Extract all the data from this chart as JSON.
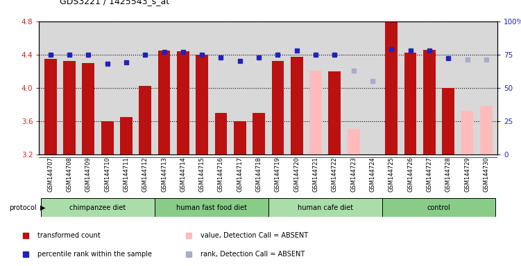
{
  "title": "GDS3221 / 1425543_s_at",
  "samples": [
    "GSM144707",
    "GSM144708",
    "GSM144709",
    "GSM144710",
    "GSM144711",
    "GSM144712",
    "GSM144713",
    "GSM144714",
    "GSM144715",
    "GSM144716",
    "GSM144717",
    "GSM144718",
    "GSM144719",
    "GSM144720",
    "GSM144721",
    "GSM144722",
    "GSM144723",
    "GSM144724",
    "GSM144725",
    "GSM144726",
    "GSM144727",
    "GSM144728",
    "GSM144729",
    "GSM144730"
  ],
  "bar_values": [
    4.35,
    4.32,
    4.3,
    3.6,
    3.65,
    4.02,
    4.45,
    4.44,
    4.4,
    3.7,
    3.6,
    3.7,
    4.32,
    4.37,
    4.21,
    4.2,
    3.51,
    3.2,
    4.8,
    4.42,
    4.46,
    4.0,
    3.72,
    3.78
  ],
  "bar_absent": [
    false,
    false,
    false,
    false,
    false,
    false,
    false,
    false,
    false,
    false,
    false,
    false,
    false,
    false,
    true,
    false,
    true,
    true,
    false,
    false,
    false,
    false,
    true,
    true
  ],
  "rank_absent": [
    false,
    false,
    false,
    false,
    false,
    false,
    false,
    false,
    false,
    false,
    false,
    false,
    false,
    false,
    false,
    false,
    true,
    true,
    false,
    false,
    false,
    false,
    true,
    true
  ],
  "rank_percentile": [
    75,
    75,
    75,
    68,
    69,
    75,
    77,
    77,
    75,
    73,
    70,
    73,
    75,
    78,
    75,
    75,
    63,
    55,
    79,
    78,
    78,
    72,
    71,
    71
  ],
  "groups": [
    {
      "label": "chimpanzee diet",
      "start": 0,
      "end": 6
    },
    {
      "label": "human fast food diet",
      "start": 6,
      "end": 12
    },
    {
      "label": "human cafe diet",
      "start": 12,
      "end": 18
    },
    {
      "label": "control",
      "start": 18,
      "end": 24
    }
  ],
  "group_colors": [
    "#aaddaa",
    "#88cc88",
    "#aaddaa",
    "#88cc88"
  ],
  "ylim_left": [
    3.2,
    4.8
  ],
  "ylim_right": [
    0,
    100
  ],
  "yticks_left": [
    3.2,
    3.6,
    4.0,
    4.4,
    4.8
  ],
  "yticks_right": [
    0,
    25,
    50,
    75,
    100
  ],
  "bar_color": "#bb1111",
  "bar_absent_color": "#ffbbbb",
  "rank_color": "#2222bb",
  "rank_absent_color": "#aaaacc",
  "bg_color": "#d8d8d8",
  "plot_bg": "#ffffff"
}
